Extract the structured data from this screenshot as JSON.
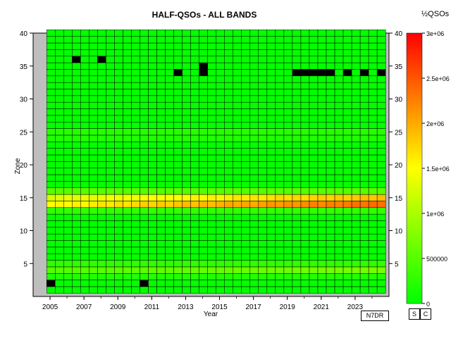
{
  "chart_data": {
    "type": "heatmap",
    "title": "HALF-QSOs - ALL BANDS",
    "xlabel": "Year",
    "ylabel": "Zone",
    "x_range": [
      2004,
      2025
    ],
    "y_range": [
      0,
      40
    ],
    "x_ticks": [
      "2005",
      "2007",
      "2009",
      "2011",
      "2013",
      "2015",
      "2017",
      "2019",
      "2021",
      "2023"
    ],
    "y_ticks": [
      "5",
      "10",
      "15",
      "20",
      "25",
      "30",
      "35",
      "40"
    ],
    "x_bin_start": 2004.8,
    "x_bin_width": 0.5,
    "x_bin_count": 40,
    "zones": [
      1,
      40
    ],
    "colorbar": {
      "title": "½QSOs",
      "min": 0,
      "max": 3000000,
      "tick_labels": [
        "0",
        "500000",
        "1e+06",
        "1.5e+06",
        "2e+06",
        "2.5e+06",
        "3e+06"
      ],
      "colors": [
        "#00ff00",
        "#ffff00",
        "#ff0000"
      ]
    },
    "zone_levels": {
      "3": 0.2,
      "4": 0.48,
      "5": 0.28,
      "13": 0.3,
      "14": 1.45,
      "15": 1.25,
      "16": 0.5,
      "24": 0.18,
      "25": 0.22
    },
    "zone_growth_per_year": {
      "4": 0.012,
      "14": 0.045,
      "15": 0.03
    },
    "zero_cells": [
      {
        "year": 2005.0,
        "zone": 2
      },
      {
        "year": 2010.3,
        "zone": 2
      },
      {
        "year": 2006.3,
        "zone": 36
      },
      {
        "year": 2007.8,
        "zone": 36
      },
      {
        "year": 2012.3,
        "zone": 34
      },
      {
        "year": 2013.8,
        "zone": 34
      },
      {
        "year": 2013.8,
        "zone": 35
      },
      {
        "year": 2019.3,
        "zone": 34
      },
      {
        "year": 2019.8,
        "zone": 34
      },
      {
        "year": 2020.3,
        "zone": 34
      },
      {
        "year": 2020.8,
        "zone": 34
      },
      {
        "year": 2021.3,
        "zone": 34
      },
      {
        "year": 2022.3,
        "zone": 34
      },
      {
        "year": 2023.3,
        "zone": 34
      },
      {
        "year": 2024.3,
        "zone": 34
      }
    ]
  },
  "buttons": {
    "s_label": "S",
    "c_label": "C"
  },
  "callsign": "N7DR"
}
